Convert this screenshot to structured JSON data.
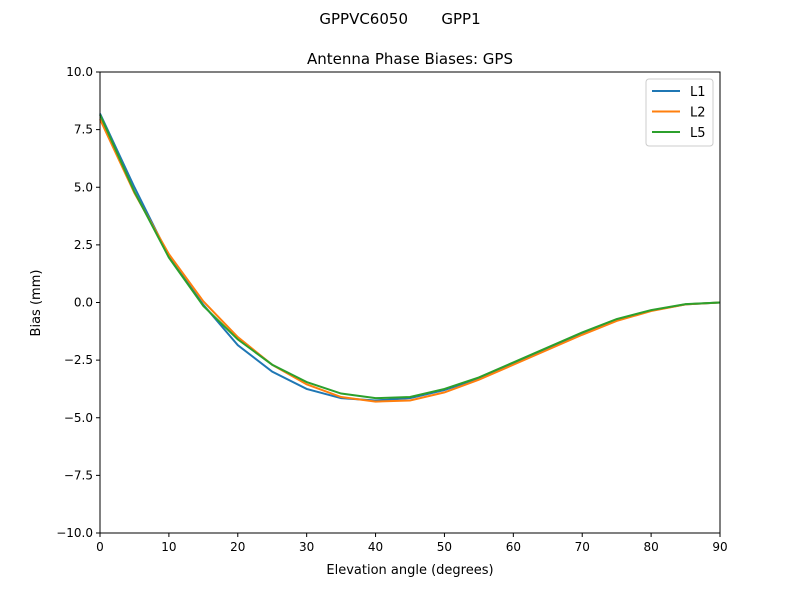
{
  "chart_data": {
    "type": "line",
    "suptitle": "GPPVC6050       GPP1",
    "title": "Antenna Phase Biases: GPS",
    "xlabel": "Elevation angle (degrees)",
    "ylabel": "Bias (mm)",
    "xlim": [
      0,
      90
    ],
    "ylim": [
      -10,
      10
    ],
    "xticks": [
      "0",
      "10",
      "20",
      "30",
      "40",
      "50",
      "60",
      "70",
      "80",
      "90"
    ],
    "yticks": [
      "10.0",
      "7.5",
      "5.0",
      "2.5",
      "0.0",
      "−2.5",
      "−5.0",
      "−7.5",
      "−10.0"
    ],
    "grid": false,
    "legend_position": "top-right",
    "x": [
      0,
      5,
      10,
      15,
      20,
      25,
      30,
      35,
      40,
      45,
      50,
      55,
      60,
      65,
      70,
      75,
      80,
      85,
      90
    ],
    "series": [
      {
        "name": "L1",
        "color": "#1f77b4",
        "values": [
          8.2,
          5.0,
          2.0,
          -0.1,
          -1.85,
          -3.0,
          -3.75,
          -4.15,
          -4.25,
          -4.15,
          -3.8,
          -3.3,
          -2.65,
          -2.0,
          -1.35,
          -0.75,
          -0.35,
          -0.08,
          0.0
        ]
      },
      {
        "name": "L2",
        "color": "#ff7f0e",
        "values": [
          7.95,
          4.75,
          2.1,
          0.05,
          -1.5,
          -2.7,
          -3.55,
          -4.1,
          -4.3,
          -4.25,
          -3.9,
          -3.35,
          -2.7,
          -2.05,
          -1.4,
          -0.8,
          -0.37,
          -0.08,
          0.0
        ]
      },
      {
        "name": "L5",
        "color": "#2ca02c",
        "values": [
          8.15,
          4.8,
          1.95,
          -0.15,
          -1.6,
          -2.7,
          -3.45,
          -3.95,
          -4.15,
          -4.1,
          -3.75,
          -3.25,
          -2.6,
          -1.95,
          -1.3,
          -0.72,
          -0.33,
          -0.07,
          0.0
        ]
      }
    ]
  }
}
